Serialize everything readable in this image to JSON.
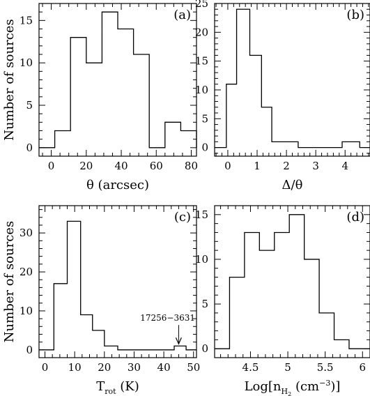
{
  "chart_data": [
    {
      "type": "histogram",
      "panel_label": "(a)",
      "xlabel": "θ (arcsec)",
      "ylabel": "Number of sources",
      "xlim": [
        -7,
        83
      ],
      "ylim": [
        -1,
        17
      ],
      "xticks": [
        0,
        20,
        40,
        60,
        80
      ],
      "yticks": [
        0,
        5,
        10,
        15
      ],
      "bin_edges": [
        -7,
        2,
        11,
        20,
        29,
        38,
        47,
        56,
        65,
        74,
        83
      ],
      "counts": [
        0,
        2,
        13,
        10,
        16,
        14,
        11,
        0,
        3,
        2,
        0
      ]
    },
    {
      "type": "histogram",
      "panel_label": "(b)",
      "xlabel": "Δ/θ",
      "ylabel": "",
      "xlim": [
        -0.45,
        4.85
      ],
      "ylim": [
        -1.5,
        25
      ],
      "xticks": [
        0,
        1,
        2,
        3,
        4
      ],
      "yticks": [
        0,
        5,
        10,
        15,
        20,
        25
      ],
      "bin_edges": [
        -0.45,
        -0.05,
        0.3,
        0.75,
        1.15,
        1.5,
        2.4,
        3.9,
        4.5,
        4.85
      ],
      "counts": [
        0,
        11,
        24,
        16,
        7,
        1,
        0,
        1,
        0
      ]
    },
    {
      "type": "histogram",
      "panel_label": "(c)",
      "xlabel": "T_rot (K)",
      "ylabel": "Number of sources",
      "xlim": [
        -2,
        51
      ],
      "ylim": [
        -2,
        37
      ],
      "xticks": [
        0,
        10,
        20,
        30,
        40,
        50
      ],
      "yticks": [
        0,
        10,
        20,
        30
      ],
      "bin_edges": [
        -2,
        3,
        7.5,
        12,
        16,
        20,
        24.5,
        43.5,
        47.5,
        51
      ],
      "counts": [
        0,
        17,
        33,
        9,
        5,
        1,
        0,
        1,
        0
      ],
      "annotations": [
        {
          "text": "17256−3631",
          "x": 45,
          "y": 1
        }
      ]
    },
    {
      "type": "histogram",
      "panel_label": "(d)",
      "xlabel": "Log[n_H2 (cm^-3)]",
      "ylabel": "",
      "xlim": [
        4.02,
        6.1
      ],
      "ylim": [
        -1,
        16
      ],
      "xticks": [
        4.5,
        5,
        5.5,
        6
      ],
      "xtick_labels": [
        "4.5",
        "5",
        "5.5",
        "6"
      ],
      "yticks": [
        0,
        5,
        10,
        15
      ],
      "bin_edges": [
        4.02,
        4.22,
        4.42,
        4.62,
        4.82,
        5.02,
        5.22,
        5.42,
        5.62,
        5.82,
        6.1
      ],
      "counts": [
        0,
        8,
        13,
        11,
        13,
        15,
        10,
        4,
        1,
        0
      ]
    }
  ]
}
